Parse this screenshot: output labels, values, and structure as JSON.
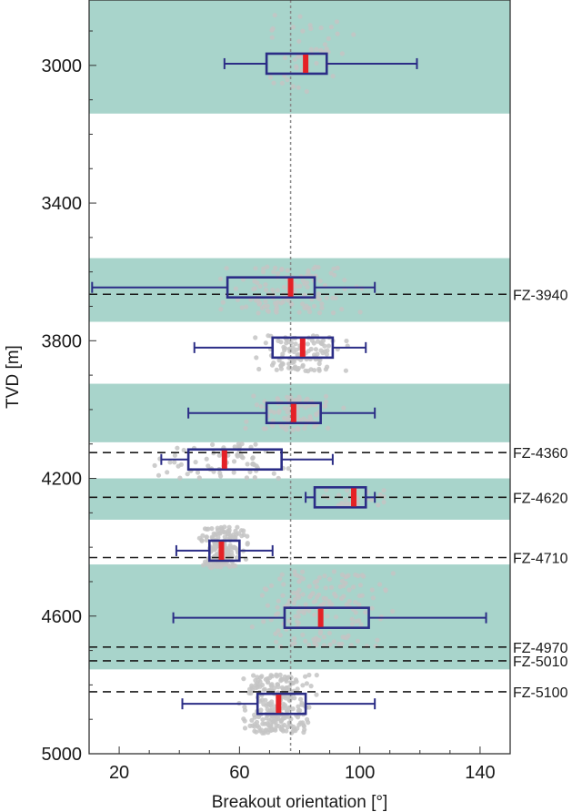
{
  "chart_data": {
    "type": "box",
    "title": "",
    "xlabel": "Breakout orientation [°]",
    "ylabel": "TVD [m]",
    "xlim": [
      10,
      150
    ],
    "ylim": [
      5000,
      2810
    ],
    "y_inverted": true,
    "xticks": [
      20,
      60,
      100,
      140
    ],
    "yticks": [
      3000,
      3400,
      3800,
      4200,
      4600,
      5000
    ],
    "reference_line_x": 77,
    "colors": {
      "band": "#a8d4cb",
      "box": "#2b2d86",
      "median": "#e52126",
      "points": "#c4c4c4",
      "reference": "#888888",
      "fault": "#1a1a1a"
    },
    "shaded_intervals": [
      [
        2810,
        3140
      ],
      [
        3560,
        3745
      ],
      [
        3925,
        4095
      ],
      [
        4200,
        4320
      ],
      [
        4450,
        4755
      ]
    ],
    "boxes": [
      {
        "center": 2995,
        "min": 55,
        "q1": 69,
        "median": 82,
        "q3": 89,
        "max": 119,
        "scatter_range": [
          2830,
          3080
        ],
        "scatter_count": 45
      },
      {
        "center": 3645,
        "min": 11,
        "q1": 56,
        "median": 77,
        "q3": 85,
        "max": 105,
        "scatter_range": [
          3585,
          3720
        ],
        "scatter_count": 120
      },
      {
        "center": 3820,
        "min": 45,
        "q1": 71,
        "median": 81,
        "q3": 91,
        "max": 102,
        "scatter_range": [
          3785,
          3890
        ],
        "scatter_count": 110
      },
      {
        "center": 4010,
        "min": 43,
        "q1": 69,
        "median": 78,
        "q3": 87,
        "max": 105,
        "scatter_range": [
          3960,
          4060
        ],
        "scatter_count": 90
      },
      {
        "center": 4145,
        "min": 34,
        "q1": 43,
        "median": 55,
        "q3": 74,
        "max": 91,
        "scatter_range": [
          4100,
          4200
        ],
        "scatter_count": 70
      },
      {
        "center": 4255,
        "min": 82,
        "q1": 85,
        "median": 98,
        "q3": 102,
        "max": 105,
        "scatter_range": [
          4230,
          4280
        ],
        "scatter_count": 30
      },
      {
        "center": 4410,
        "min": 39,
        "q1": 50,
        "median": 54,
        "q3": 60,
        "max": 71,
        "scatter_range": [
          4340,
          4460
        ],
        "scatter_count": 180
      },
      {
        "center": 4605,
        "min": 38,
        "q1": 75,
        "median": 87,
        "q3": 103,
        "max": 142,
        "scatter_range": [
          4470,
          4690
        ],
        "scatter_count": 160
      },
      {
        "center": 4855,
        "min": 41,
        "q1": 66,
        "median": 73,
        "q3": 82,
        "max": 105,
        "scatter_range": [
          4770,
          4940
        ],
        "scatter_count": 260
      }
    ],
    "faults": [
      {
        "label": "FZ-3940",
        "depth": 3665
      },
      {
        "label": "FZ-4360",
        "depth": 4125
      },
      {
        "label": "FZ-4620",
        "depth": 4255
      },
      {
        "label": "FZ-4710",
        "depth": 4430
      },
      {
        "label": "FZ-4970",
        "depth": 4690
      },
      {
        "label": "FZ-5010",
        "depth": 4730
      },
      {
        "label": "FZ-5100",
        "depth": 4820
      }
    ]
  }
}
